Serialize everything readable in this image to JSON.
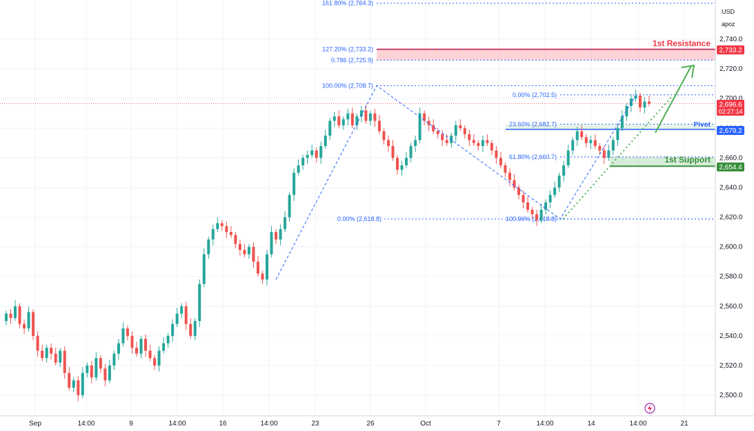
{
  "axis": {
    "currency": "USD",
    "scale_mode": "apoz",
    "y_ticks": [
      "2,740.0",
      "2,720.0",
      "2,700.0",
      "2,680.0",
      "2,660.0",
      "2,640.0",
      "2,620.0",
      "2,600.0",
      "2,580.0",
      "2,560.0",
      "2,540.0",
      "2,520.0",
      "2,500.0"
    ],
    "x_ticks": [
      "Sep",
      "14:00",
      "9",
      "14:00",
      "16",
      "14:00",
      "23",
      "26",
      "Oct",
      "7",
      "14:00",
      "14",
      "14:00",
      "21"
    ]
  },
  "price_badges": {
    "current_price": "2,696.6",
    "countdown": "02:27:14",
    "resistance": "2,733.2",
    "pivot": "2,679.2",
    "support": "2,654.4"
  },
  "annotations": {
    "resistance_label": "1st Resistance",
    "pivot_label": "Pivot",
    "support_label": "1st Support",
    "fib_labels": [
      "161.80% (2,764.3)",
      "127.20% (2,733.2)",
      "0.786 (2,725.9)",
      "100.00% (2,708.7)",
      "0.00% (2,618.8)",
      "0.00% (2,702.5)",
      "23.60% (2,682.7)",
      "61.80% (2,660.7)",
      "100.00% (2,618.8)"
    ]
  },
  "colors": {
    "up": "#26a69a",
    "down": "#ef5350",
    "fib": "#2962ff",
    "resistance": "#f23645",
    "support": "#388e3c",
    "arrow": "#4caf50"
  },
  "chart_data": {
    "type": "candlestick",
    "instrument_currency": "USD",
    "ylim": [
      2490,
      2765
    ],
    "grid": true,
    "candles_close": [
      2555,
      2552,
      2560,
      2548,
      2545,
      2556,
      2540,
      2530,
      2525,
      2532,
      2528,
      2522,
      2530,
      2515,
      2505,
      2510,
      2500,
      2515,
      2520,
      2512,
      2525,
      2518,
      2510,
      2520,
      2528,
      2535,
      2545,
      2540,
      2532,
      2528,
      2538,
      2530,
      2525,
      2520,
      2530,
      2535,
      2540,
      2548,
      2555,
      2560,
      2548,
      2540,
      2550,
      2575,
      2595,
      2605,
      2612,
      2616,
      2614,
      2610,
      2608,
      2602,
      2598,
      2595,
      2600,
      2590,
      2582,
      2578,
      2595,
      2610,
      2605,
      2612,
      2620,
      2635,
      2650,
      2655,
      2660,
      2662,
      2665,
      2660,
      2668,
      2675,
      2685,
      2688,
      2682,
      2686,
      2690,
      2682,
      2688,
      2692,
      2685,
      2690,
      2685,
      2678,
      2672,
      2668,
      2660,
      2652,
      2655,
      2660,
      2668,
      2672,
      2690,
      2685,
      2682,
      2678,
      2676,
      2672,
      2670,
      2675,
      2682,
      2680,
      2676,
      2672,
      2670,
      2668,
      2672,
      2670,
      2665,
      2660,
      2655,
      2650,
      2645,
      2640,
      2635,
      2630,
      2625,
      2622,
      2618,
      2625,
      2630,
      2635,
      2640,
      2648,
      2655,
      2665,
      2672,
      2678,
      2674,
      2670,
      2672,
      2668,
      2665,
      2660,
      2665,
      2672,
      2680,
      2688,
      2695,
      2700,
      2702,
      2694,
      2698,
      2696.6
    ],
    "horizontal_levels": [
      {
        "label": "1st Resistance",
        "value": 2733.2
      },
      {
        "label": "0.786",
        "value": 2725.9
      },
      {
        "label": "Pivot",
        "value": 2679.2
      },
      {
        "label": "1st Support",
        "value": 2654.4
      }
    ],
    "fib_levels": [
      {
        "label": "161.80%",
        "value": 2764.3
      },
      {
        "label": "127.20%",
        "value": 2733.2
      },
      {
        "label": "0.786",
        "value": 2725.9
      },
      {
        "label": "100.00%",
        "value": 2708.7
      },
      {
        "label": "0.00%",
        "value": 2702.5
      },
      {
        "label": "23.60%",
        "value": 2682.7
      },
      {
        "label": "61.80%",
        "value": 2660.7
      },
      {
        "label": "0.00%",
        "value": 2618.8
      },
      {
        "label": "100.00%",
        "value": 2618.8
      }
    ],
    "current_price": 2696.6
  }
}
